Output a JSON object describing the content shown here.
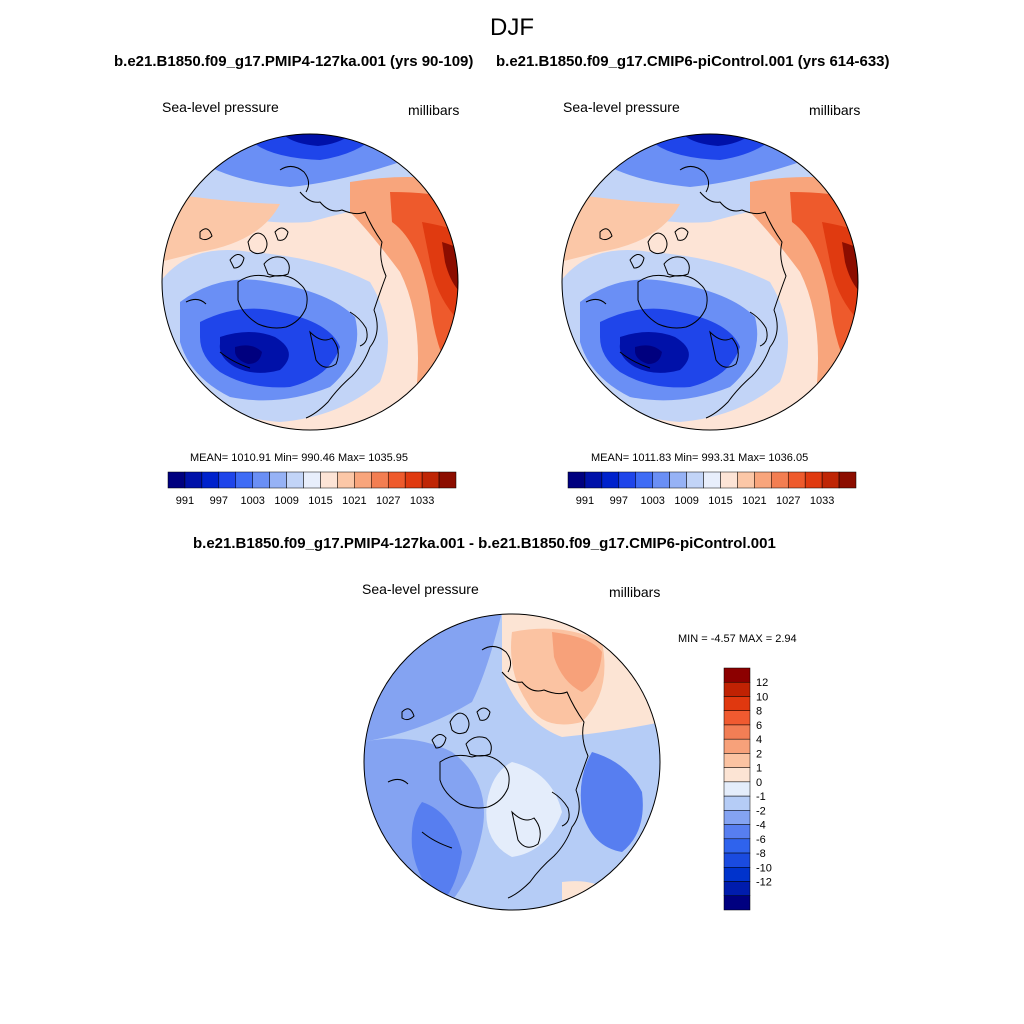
{
  "figure_title": "DJF",
  "colors": {
    "full": [
      "#00007f",
      "#0011a9",
      "#0022cc",
      "#1f45ea",
      "#3f6cf5",
      "#6a8ff5",
      "#96b2f5",
      "#c2d4f7",
      "#e8eefb",
      "#fde4d6",
      "#fbc7a7",
      "#f8a57c",
      "#f37e52",
      "#ee5a2c",
      "#e03a10",
      "#bf2606",
      "#8c0d00"
    ],
    "diff": [
      "#000080",
      "#001cad",
      "#0033cc",
      "#1a4be0",
      "#2f63ed",
      "#577ef0",
      "#84a3f2",
      "#b5ccf6",
      "#e4edfb",
      "#fce4d4",
      "#fbc3a2",
      "#f7a17a",
      "#f27e55",
      "#f05a30",
      "#e0380f",
      "#c02203",
      "#8c0000"
    ]
  },
  "panels": [
    {
      "case": "b.e21.B1850.f09_g17.PMIP4-127ka.001 (yrs 90-109)",
      "variable": "Sea-level pressure",
      "units": "millibars",
      "stats": "MEAN= 1010.91  Min= 990.46  Max= 1035.95",
      "colorbar_ticks": [
        "991",
        "997",
        "1003",
        "1009",
        "1015",
        "1021",
        "1027",
        "1033"
      ]
    },
    {
      "case": "b.e21.B1850.f09_g17.CMIP6-piControl.001 (yrs 614-633)",
      "variable": "Sea-level pressure",
      "units": "millibars",
      "stats": "MEAN= 1011.83  Min= 993.31  Max= 1036.05",
      "colorbar_ticks": [
        "991",
        "997",
        "1003",
        "1009",
        "1015",
        "1021",
        "1027",
        "1033"
      ]
    }
  ],
  "difference": {
    "title": "b.e21.B1850.f09_g17.PMIP4-127ka.001 - b.e21.B1850.f09_g17.CMIP6-piControl.001",
    "variable": "Sea-level pressure",
    "units": "millibars",
    "stats": "MIN =  -4.57 MAX =   2.94",
    "colorbar_ticks": [
      "12",
      "10",
      "8",
      "6",
      "4",
      "2",
      "1",
      "0",
      "-1",
      "-2",
      "-4",
      "-6",
      "-8",
      "-10",
      "-12"
    ]
  }
}
